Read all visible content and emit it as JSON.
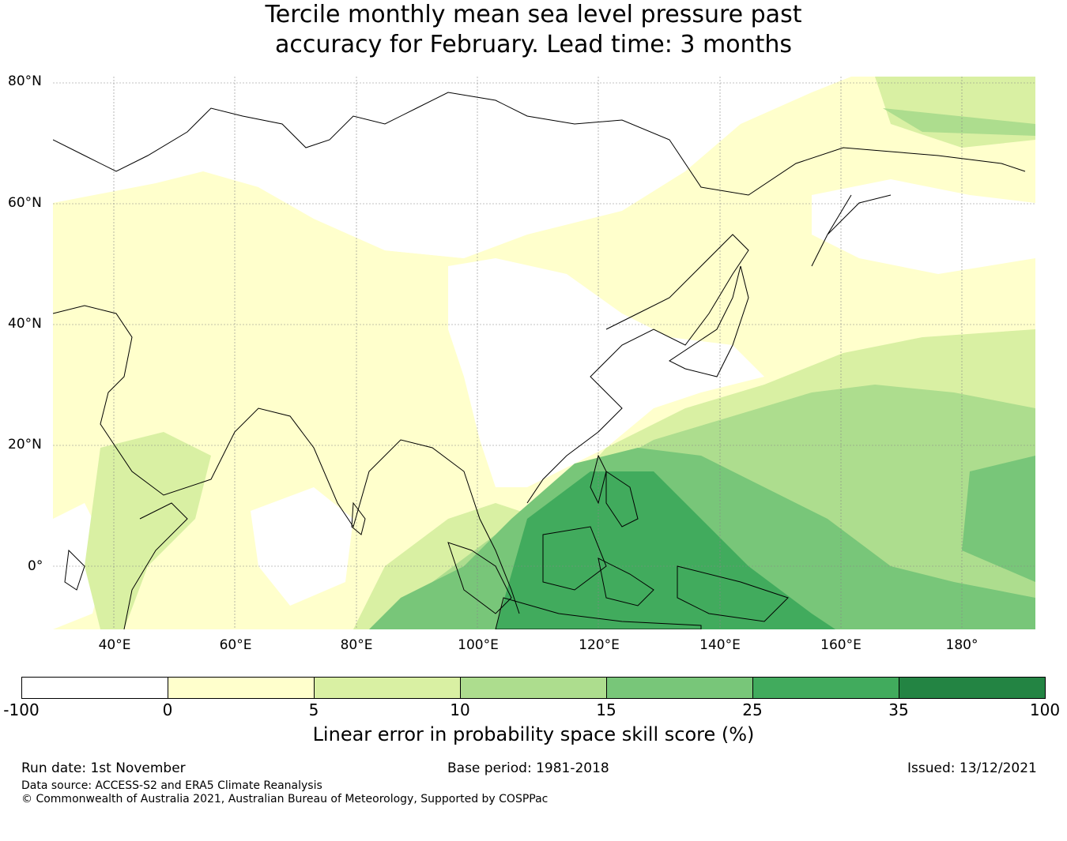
{
  "title": {
    "line1": "Tercile monthly mean sea level pressure past",
    "line2": "accuracy for February. Lead time: 3 months"
  },
  "map": {
    "lat_labels": [
      "80°N",
      "60°N",
      "40°N",
      "20°N",
      "0°"
    ],
    "lon_labels": [
      "40°E",
      "60°E",
      "80°E",
      "100°E",
      "120°E",
      "140°E",
      "160°E",
      "180°"
    ],
    "extent": {
      "lon_min": 30,
      "lon_max": 192,
      "lat_min": -10,
      "lat_max": 81
    }
  },
  "colorbar": {
    "ticks": [
      "-100",
      "0",
      "5",
      "10",
      "15",
      "25",
      "35",
      "100"
    ],
    "colors": [
      "#ffffff",
      "#ffffcc",
      "#d9f0a3",
      "#addd8e",
      "#78c679",
      "#41ab5d",
      "#238443"
    ],
    "label": "Linear error in probability space skill score (%)"
  },
  "footer": {
    "run_date": "Run date: 1st November",
    "base_period": "Base period: 1981-2018",
    "issued": "Issued: 13/12/2021",
    "data_source": "Data source: ACCESS-S2 and ERA5 Climate Reanalysis",
    "copyright": "© Commonwealth of Australia 2021, Australian Bureau of Meteorology, Supported by COSPPac"
  }
}
